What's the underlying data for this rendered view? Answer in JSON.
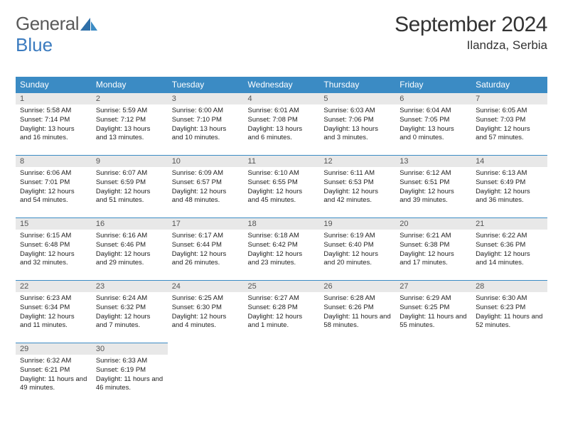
{
  "logo": {
    "text1": "General",
    "text2": "Blue"
  },
  "title": "September 2024",
  "location": "Ilandza, Serbia",
  "colors": {
    "header_bg": "#3b8bc4",
    "header_fg": "#ffffff",
    "dayhead_bg": "#e8e8e8",
    "dayhead_fg": "#555555",
    "border": "#3b8bc4",
    "text": "#222222"
  },
  "weekdays": [
    "Sunday",
    "Monday",
    "Tuesday",
    "Wednesday",
    "Thursday",
    "Friday",
    "Saturday"
  ],
  "days": [
    {
      "n": "1",
      "sr": "5:58 AM",
      "ss": "7:14 PM",
      "dl": "13 hours and 16 minutes."
    },
    {
      "n": "2",
      "sr": "5:59 AM",
      "ss": "7:12 PM",
      "dl": "13 hours and 13 minutes."
    },
    {
      "n": "3",
      "sr": "6:00 AM",
      "ss": "7:10 PM",
      "dl": "13 hours and 10 minutes."
    },
    {
      "n": "4",
      "sr": "6:01 AM",
      "ss": "7:08 PM",
      "dl": "13 hours and 6 minutes."
    },
    {
      "n": "5",
      "sr": "6:03 AM",
      "ss": "7:06 PM",
      "dl": "13 hours and 3 minutes."
    },
    {
      "n": "6",
      "sr": "6:04 AM",
      "ss": "7:05 PM",
      "dl": "13 hours and 0 minutes."
    },
    {
      "n": "7",
      "sr": "6:05 AM",
      "ss": "7:03 PM",
      "dl": "12 hours and 57 minutes."
    },
    {
      "n": "8",
      "sr": "6:06 AM",
      "ss": "7:01 PM",
      "dl": "12 hours and 54 minutes."
    },
    {
      "n": "9",
      "sr": "6:07 AM",
      "ss": "6:59 PM",
      "dl": "12 hours and 51 minutes."
    },
    {
      "n": "10",
      "sr": "6:09 AM",
      "ss": "6:57 PM",
      "dl": "12 hours and 48 minutes."
    },
    {
      "n": "11",
      "sr": "6:10 AM",
      "ss": "6:55 PM",
      "dl": "12 hours and 45 minutes."
    },
    {
      "n": "12",
      "sr": "6:11 AM",
      "ss": "6:53 PM",
      "dl": "12 hours and 42 minutes."
    },
    {
      "n": "13",
      "sr": "6:12 AM",
      "ss": "6:51 PM",
      "dl": "12 hours and 39 minutes."
    },
    {
      "n": "14",
      "sr": "6:13 AM",
      "ss": "6:49 PM",
      "dl": "12 hours and 36 minutes."
    },
    {
      "n": "15",
      "sr": "6:15 AM",
      "ss": "6:48 PM",
      "dl": "12 hours and 32 minutes."
    },
    {
      "n": "16",
      "sr": "6:16 AM",
      "ss": "6:46 PM",
      "dl": "12 hours and 29 minutes."
    },
    {
      "n": "17",
      "sr": "6:17 AM",
      "ss": "6:44 PM",
      "dl": "12 hours and 26 minutes."
    },
    {
      "n": "18",
      "sr": "6:18 AM",
      "ss": "6:42 PM",
      "dl": "12 hours and 23 minutes."
    },
    {
      "n": "19",
      "sr": "6:19 AM",
      "ss": "6:40 PM",
      "dl": "12 hours and 20 minutes."
    },
    {
      "n": "20",
      "sr": "6:21 AM",
      "ss": "6:38 PM",
      "dl": "12 hours and 17 minutes."
    },
    {
      "n": "21",
      "sr": "6:22 AM",
      "ss": "6:36 PM",
      "dl": "12 hours and 14 minutes."
    },
    {
      "n": "22",
      "sr": "6:23 AM",
      "ss": "6:34 PM",
      "dl": "12 hours and 11 minutes."
    },
    {
      "n": "23",
      "sr": "6:24 AM",
      "ss": "6:32 PM",
      "dl": "12 hours and 7 minutes."
    },
    {
      "n": "24",
      "sr": "6:25 AM",
      "ss": "6:30 PM",
      "dl": "12 hours and 4 minutes."
    },
    {
      "n": "25",
      "sr": "6:27 AM",
      "ss": "6:28 PM",
      "dl": "12 hours and 1 minute."
    },
    {
      "n": "26",
      "sr": "6:28 AM",
      "ss": "6:26 PM",
      "dl": "11 hours and 58 minutes."
    },
    {
      "n": "27",
      "sr": "6:29 AM",
      "ss": "6:25 PM",
      "dl": "11 hours and 55 minutes."
    },
    {
      "n": "28",
      "sr": "6:30 AM",
      "ss": "6:23 PM",
      "dl": "11 hours and 52 minutes."
    },
    {
      "n": "29",
      "sr": "6:32 AM",
      "ss": "6:21 PM",
      "dl": "11 hours and 49 minutes."
    },
    {
      "n": "30",
      "sr": "6:33 AM",
      "ss": "6:19 PM",
      "dl": "11 hours and 46 minutes."
    }
  ],
  "labels": {
    "sunrise": "Sunrise:",
    "sunset": "Sunset:",
    "daylight": "Daylight:"
  }
}
